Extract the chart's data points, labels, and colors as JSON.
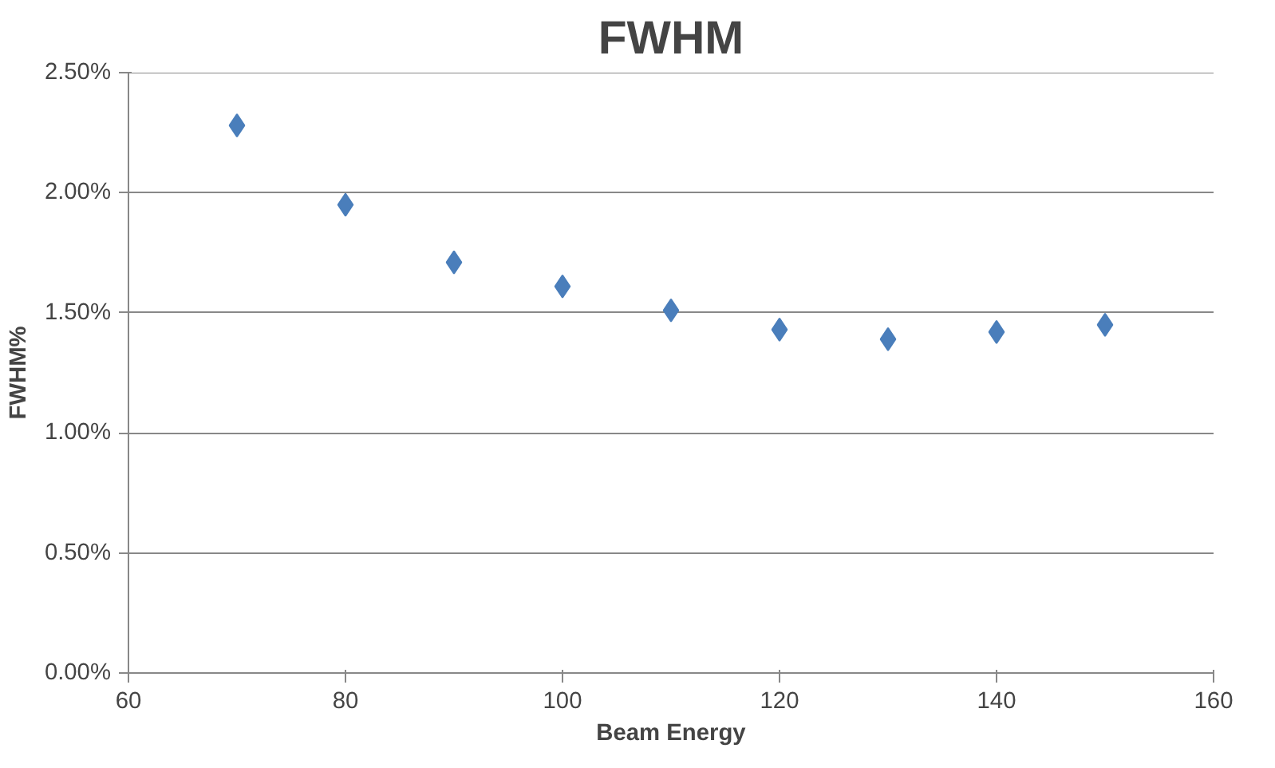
{
  "chart_data": {
    "type": "scatter",
    "title": "FWHM",
    "xlabel": "Beam Energy",
    "ylabel": "FWHM%",
    "x": [
      70,
      80,
      90,
      100,
      110,
      120,
      130,
      140,
      150
    ],
    "series": [
      {
        "color": "#4a7ebb",
        "values": [
          2.28,
          1.95,
          1.71,
          1.61,
          1.51,
          1.43,
          1.39,
          1.42,
          1.45
        ]
      }
    ],
    "xlim": [
      60,
      160
    ],
    "xticks": [
      60,
      80,
      100,
      120,
      140,
      160
    ],
    "ylim": [
      0,
      2.5
    ],
    "yticks": [
      {
        "value": 0,
        "label": "0.00%"
      },
      {
        "value": 0.5,
        "label": "0.50%"
      },
      {
        "value": 1.0,
        "label": "1.00%"
      },
      {
        "value": 1.5,
        "label": "1.50%"
      },
      {
        "value": 2.0,
        "label": "2.00%"
      },
      {
        "value": 2.5,
        "label": "2.50%"
      }
    ],
    "grid": "y",
    "marker": "diamond"
  }
}
